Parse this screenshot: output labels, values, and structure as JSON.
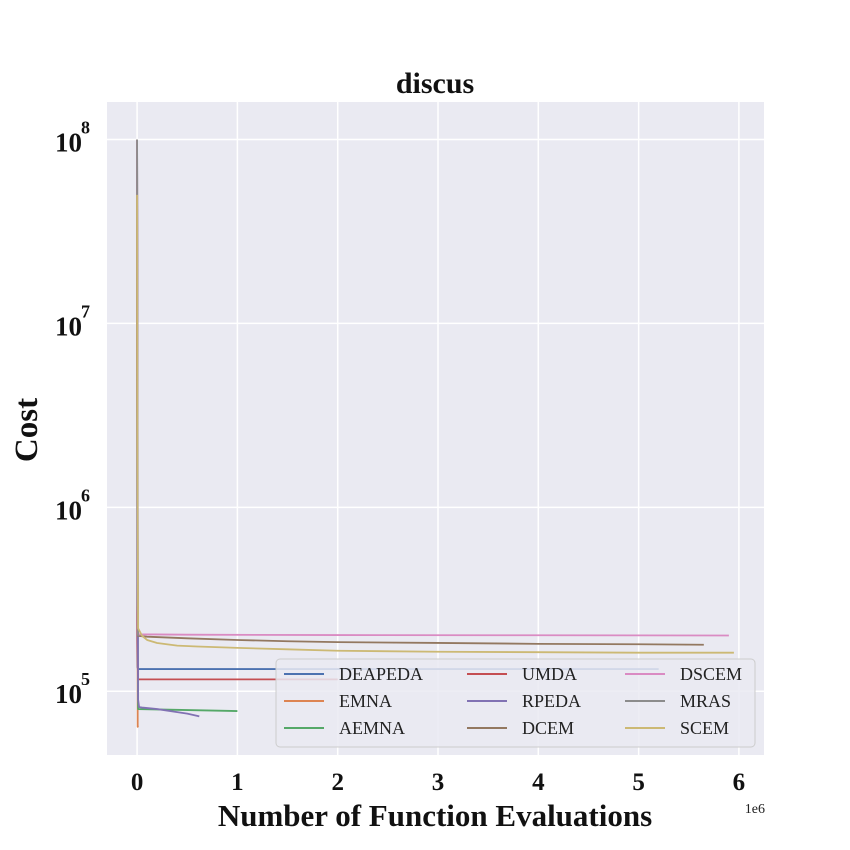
{
  "chart_data": {
    "type": "line",
    "title": "discus",
    "xlabel": "Number of Function Evaluations",
    "ylabel": "Cost",
    "x_offset_label": "1e6",
    "x_scale_factor": 1000000,
    "xlim": [
      -0.3,
      6.25
    ],
    "ylim": [
      45000,
      160000000
    ],
    "yscale": "log",
    "xticks": [
      0,
      1,
      2,
      3,
      4,
      5,
      6
    ],
    "xtick_labels": [
      "0",
      "1",
      "2",
      "3",
      "4",
      "5",
      "6"
    ],
    "yticks": [
      100000,
      1000000,
      10000000,
      100000000
    ],
    "ytick_base": "10",
    "ytick_exponents": [
      "5",
      "6",
      "7",
      "8"
    ],
    "grid": true,
    "legend_location": "lower-right",
    "legend_columns": 3,
    "series": [
      {
        "name": "DEAPEDA",
        "color": "#4c72b0",
        "x": [
          0,
          0.001,
          0.003,
          0.01,
          5.2
        ],
        "y": [
          100000000,
          200000,
          135000,
          132000,
          132000
        ]
      },
      {
        "name": "EMNA",
        "color": "#dd8452",
        "x": [
          0,
          0.003,
          0.006,
          0.01
        ],
        "y": [
          100000000,
          1000000,
          64000,
          65000
        ]
      },
      {
        "name": "AEMNA",
        "color": "#55a868",
        "x": [
          0,
          0.003,
          0.01,
          1.0
        ],
        "y": [
          100000000,
          1000000,
          80000,
          78000
        ]
      },
      {
        "name": "UMDA",
        "color": "#c44e52",
        "x": [
          0,
          0.003,
          0.01,
          2.0
        ],
        "y": [
          100000000,
          180000,
          116000,
          116000
        ]
      },
      {
        "name": "RPEDA",
        "color": "#8172b3",
        "x": [
          0,
          0.005,
          0.01,
          0.02,
          0.05,
          0.1,
          0.2,
          0.3,
          0.4,
          0.5,
          0.6,
          0.62
        ],
        "y": [
          100000000,
          3000000,
          90000,
          82000,
          81500,
          81000,
          80000,
          78500,
          77000,
          75500,
          73500,
          73000
        ]
      },
      {
        "name": "DCEM",
        "color": "#937860",
        "x": [
          0,
          0.005,
          0.01,
          0.1,
          0.5,
          1.0,
          1.5,
          2.0,
          3.0,
          4.0,
          5.0,
          5.65
        ],
        "y": [
          100000000,
          400000,
          200000,
          198000,
          194000,
          190000,
          187000,
          185000,
          183000,
          181000,
          180000,
          179000
        ]
      },
      {
        "name": "DSCEM",
        "color": "#da8bc3",
        "x": [
          0,
          0.005,
          0.01,
          0.5,
          2.0,
          4.0,
          5.9
        ],
        "y": [
          100000000,
          400000,
          204000,
          203000,
          202000,
          201500,
          201000
        ]
      },
      {
        "name": "MRAS",
        "color": "#8c8c8c",
        "x": [
          0,
          0.003,
          0.006,
          0.01
        ],
        "y": [
          100000000,
          5000000,
          300000,
          200000
        ]
      },
      {
        "name": "SCEM",
        "color": "#ccb974",
        "x": [
          0,
          0.003,
          0.01,
          0.05,
          0.1,
          0.2,
          0.4,
          0.6,
          1.0,
          1.5,
          2.0,
          3.0,
          4.0,
          5.0,
          5.95
        ],
        "y": [
          50000000,
          2000000,
          220000,
          200000,
          190000,
          183000,
          177000,
          175000,
          172000,
          169000,
          166000,
          164000,
          163000,
          162000,
          162000
        ]
      }
    ]
  }
}
